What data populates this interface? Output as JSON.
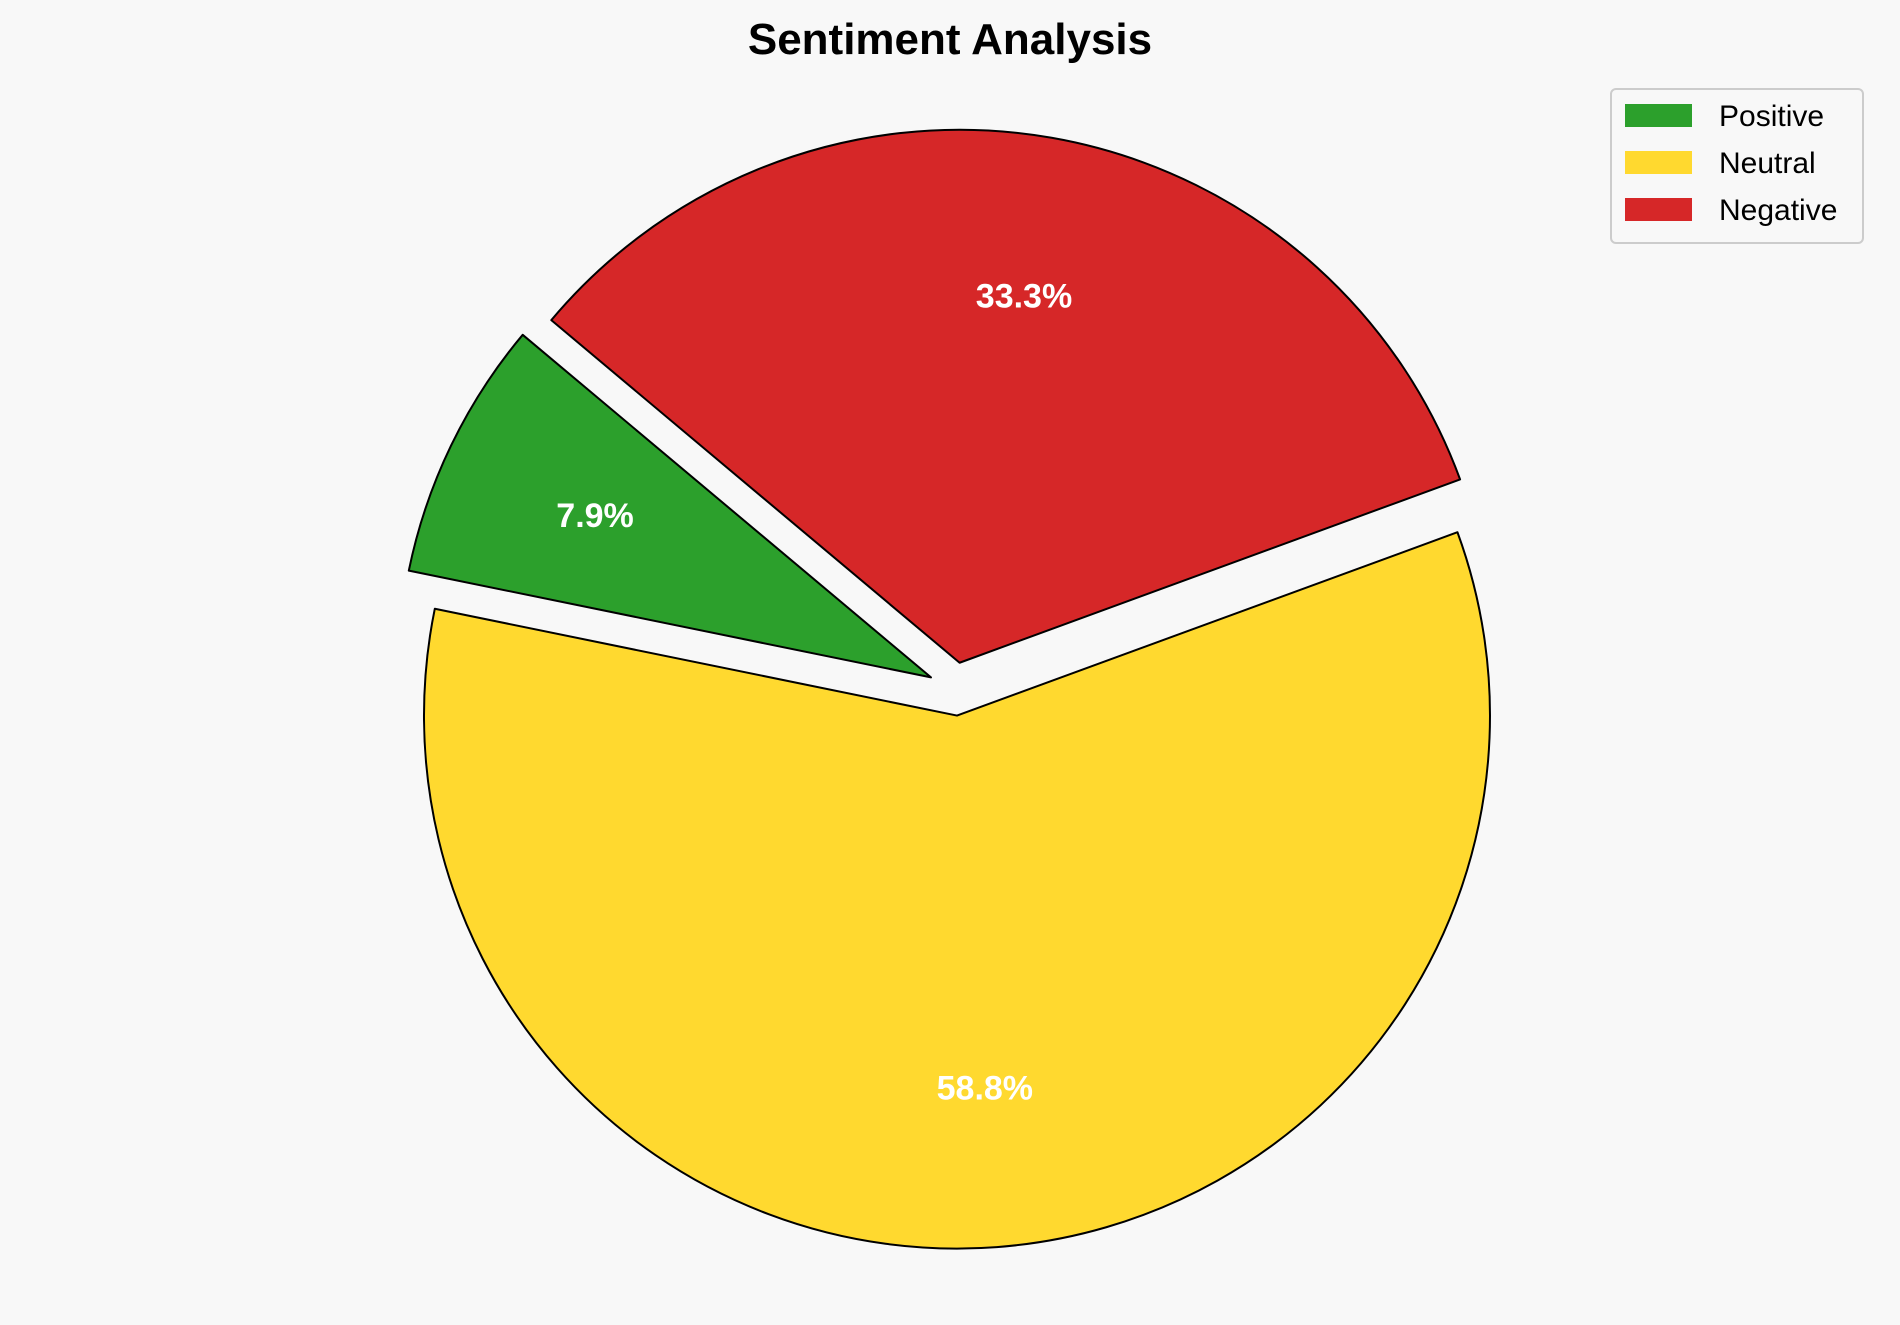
{
  "chart_data": {
    "type": "pie",
    "title": "Sentiment Analysis",
    "categories": [
      "Positive",
      "Neutral",
      "Negative"
    ],
    "values": [
      7.9,
      58.8,
      33.3
    ],
    "labels": [
      "7.9%",
      "58.8%",
      "33.3%"
    ],
    "colors": [
      "#2ca02c",
      "#ffd92f",
      "#d62728"
    ],
    "explode": [
      0.05,
      0.05,
      0.05
    ],
    "start_angle": 140,
    "direction": "counterclockwise",
    "edge_color": "#000000",
    "label_color": "#ffffff",
    "legend": {
      "placement": "top-right",
      "entries": [
        "Positive",
        "Neutral",
        "Negative"
      ]
    },
    "background": "#f8f8f8"
  }
}
